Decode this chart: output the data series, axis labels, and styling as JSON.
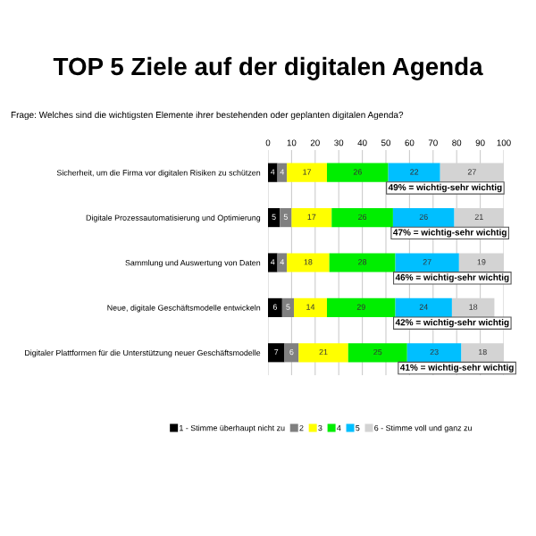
{
  "chart_data": {
    "type": "bar",
    "orientation": "horizontal",
    "stacked": true,
    "title": "TOP 5 Ziele auf der digitalen Agenda",
    "subtitle": "Frage: Welches sind die wichtigsten Elemente ihrer bestehenden oder geplanten digitalen Agenda?",
    "categories": [
      "Sicherheit, um die Firma vor digitalen Risiken zu schützen",
      "Digitale Prozessautomatisierung und Optimierung",
      "Sammlung und Auswertung von Daten",
      "Neue, digitale Geschäftsmodelle entwickeln",
      "Digitaler Plattformen für die Unterstützung neuer Geschäftsmodelle"
    ],
    "series": [
      {
        "name": "1 - Stimme überhaupt nicht zu",
        "color": "#000000",
        "values": [
          4,
          5,
          4,
          6,
          7
        ]
      },
      {
        "name": "2",
        "color": "#808080",
        "values": [
          4,
          5,
          4,
          5,
          6
        ]
      },
      {
        "name": "3",
        "color": "#ffff00",
        "values": [
          17,
          17,
          18,
          14,
          21
        ]
      },
      {
        "name": "4",
        "color": "#00ee00",
        "values": [
          26,
          26,
          28,
          29,
          25
        ]
      },
      {
        "name": "5",
        "color": "#00bfff",
        "values": [
          22,
          26,
          27,
          24,
          23
        ]
      },
      {
        "name": "6 - Stimme voll und ganz zu",
        "color": "#d3d3d3",
        "values": [
          27,
          21,
          19,
          18,
          18
        ]
      }
    ],
    "xlim": [
      0,
      100
    ],
    "xticks": [
      0,
      10,
      20,
      30,
      40,
      50,
      60,
      70,
      80,
      90,
      100
    ],
    "grid": "x",
    "data_labels": true,
    "legend": "bottom",
    "annotations": [
      {
        "text": "49% = wichtig-sehr wichtig",
        "x": 51,
        "y": "Sicherheit, um die Firma vor digitalen Risiken zu schützen"
      },
      {
        "text": "47% = wichtig-sehr wichtig",
        "x": 53,
        "y": "Digitale Prozessautomatisierung und Optimierung"
      },
      {
        "text": "46% = wichtig-sehr wichtig",
        "x": 54,
        "y": "Sammlung und Auswertung von Daten"
      },
      {
        "text": "42% = wichtig-sehr wichtig",
        "x": 54,
        "y": "Neue, digitale Geschäftsmodelle entwickeln"
      },
      {
        "text": "41% = wichtig-sehr wichtig",
        "x": 56,
        "y": "Digitaler Plattformen für die Unterstützung neuer Geschäftsmodelle"
      }
    ]
  }
}
